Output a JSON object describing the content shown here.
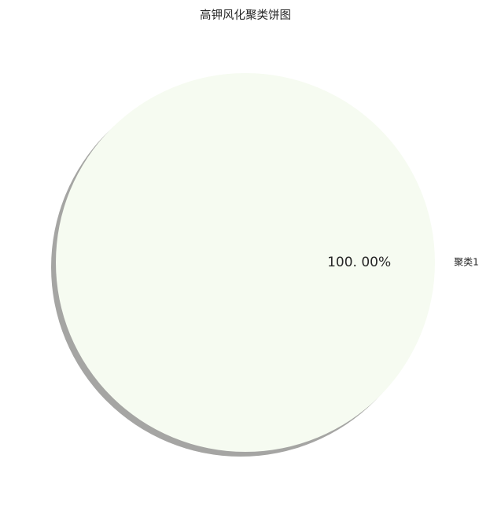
{
  "chart_data": {
    "type": "pie",
    "title": "高钾风化聚类饼图",
    "slices": [
      {
        "label": "聚类1",
        "value": 1,
        "pct_label": "100. 00%",
        "color": "#f6fbf1"
      }
    ],
    "shadow": true,
    "shadow_color": "#a5a5a3",
    "legend": "none"
  }
}
